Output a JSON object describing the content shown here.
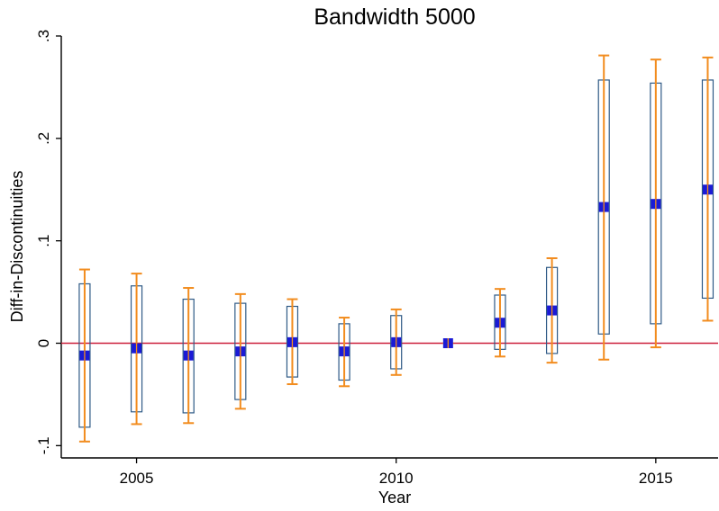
{
  "chart_data": {
    "type": "errorbar",
    "title": "Bandwidth 5000",
    "xlabel": "Year",
    "ylabel": "Diff-in-Discontinuities",
    "xlim": [
      2003.55,
      2016.2
    ],
    "ylim": [
      -0.112,
      0.3
    ],
    "x_ticks": [
      2005,
      2010,
      2015
    ],
    "x_tick_labels": [
      "2005",
      "2010",
      "2015"
    ],
    "y_ticks": [
      -0.1,
      0,
      0.1,
      0.2,
      0.3
    ],
    "y_tick_labels": [
      "-.1",
      "0",
      ".1",
      ".2",
      ".3"
    ],
    "reference_line": 0,
    "grid": false,
    "colors": {
      "point": "#1a1ad6",
      "outer_ci": "#f28c1e",
      "inner_ci": "#2f5a86",
      "reference": "#cc1f3a"
    },
    "points": [
      {
        "x": 2004,
        "y": -0.012,
        "ci90": [
          -0.082,
          0.058
        ],
        "ci95": [
          -0.096,
          0.072
        ]
      },
      {
        "x": 2005,
        "y": -0.005,
        "ci90": [
          -0.067,
          0.056
        ],
        "ci95": [
          -0.079,
          0.068
        ]
      },
      {
        "x": 2006,
        "y": -0.012,
        "ci90": [
          -0.068,
          0.043
        ],
        "ci95": [
          -0.078,
          0.054
        ]
      },
      {
        "x": 2007,
        "y": -0.008,
        "ci90": [
          -0.055,
          0.039
        ],
        "ci95": [
          -0.064,
          0.048
        ]
      },
      {
        "x": 2008,
        "y": 0.001,
        "ci90": [
          -0.033,
          0.036
        ],
        "ci95": [
          -0.04,
          0.043
        ]
      },
      {
        "x": 2009,
        "y": -0.008,
        "ci90": [
          -0.036,
          0.019
        ],
        "ci95": [
          -0.042,
          0.025
        ]
      },
      {
        "x": 2010,
        "y": 0.001,
        "ci90": [
          -0.025,
          0.027
        ],
        "ci95": [
          -0.031,
          0.033
        ]
      },
      {
        "x": 2011,
        "y": 0.0,
        "ci90": [
          0.0,
          0.0
        ],
        "ci95": [
          0.0,
          0.0
        ]
      },
      {
        "x": 2012,
        "y": 0.02,
        "ci90": [
          -0.006,
          0.047
        ],
        "ci95": [
          -0.013,
          0.053
        ]
      },
      {
        "x": 2013,
        "y": 0.032,
        "ci90": [
          -0.01,
          0.074
        ],
        "ci95": [
          -0.019,
          0.083
        ]
      },
      {
        "x": 2014,
        "y": 0.133,
        "ci90": [
          0.009,
          0.257
        ],
        "ci95": [
          -0.016,
          0.281
        ]
      },
      {
        "x": 2015,
        "y": 0.136,
        "ci90": [
          0.019,
          0.254
        ],
        "ci95": [
          -0.004,
          0.277
        ]
      },
      {
        "x": 2016,
        "y": 0.15,
        "ci90": [
          0.044,
          0.257
        ],
        "ci95": [
          0.022,
          0.279
        ]
      }
    ]
  }
}
